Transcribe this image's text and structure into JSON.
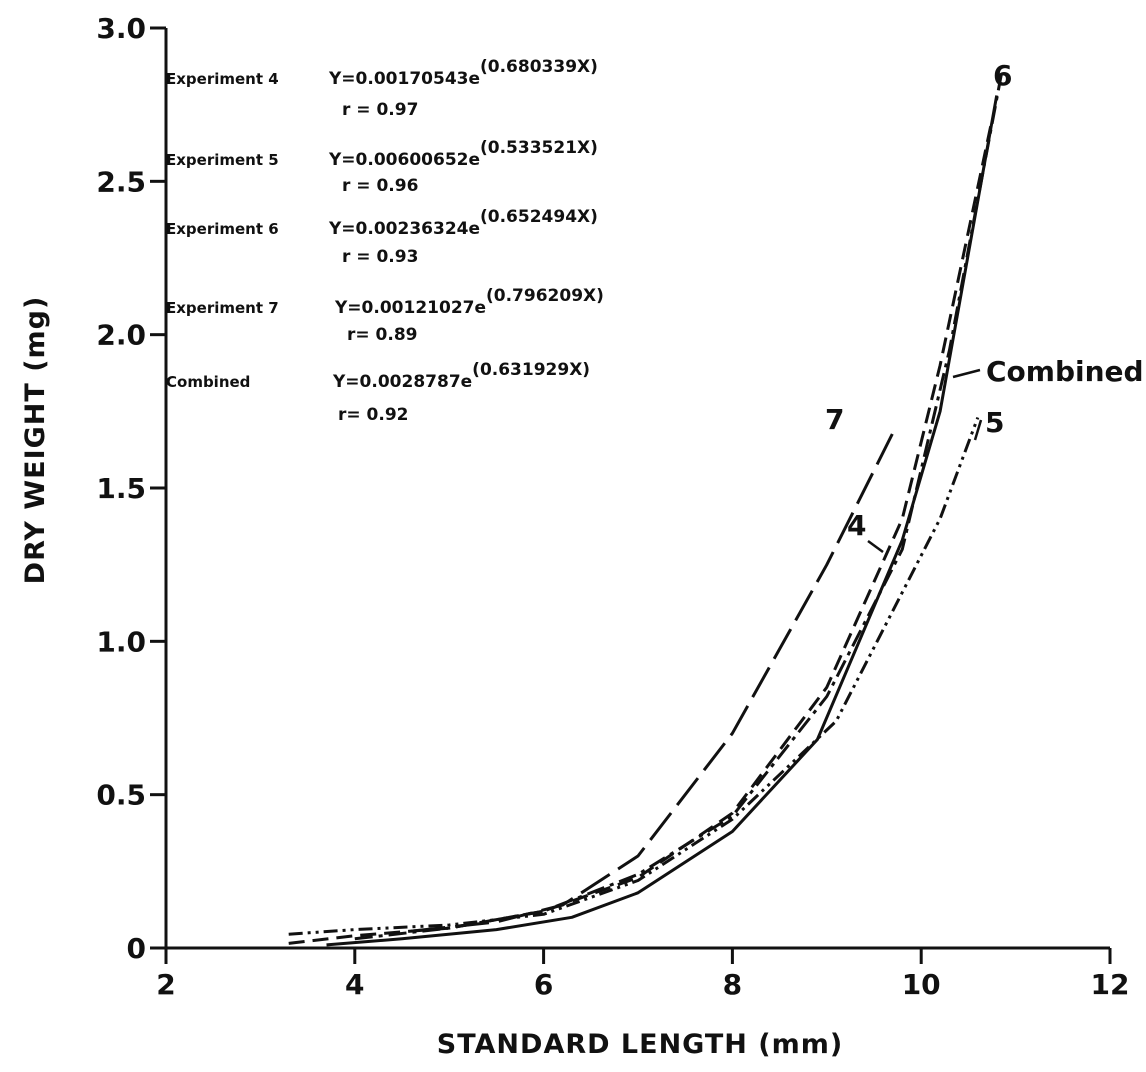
{
  "chart_data": {
    "type": "line",
    "xlabel": "STANDARD LENGTH (mm)",
    "ylabel": "DRY WEIGHT (mg)",
    "xlim": [
      2,
      12
    ],
    "ylim": [
      0,
      3.0
    ],
    "x_ticks": [
      2,
      4,
      6,
      8,
      10,
      12
    ],
    "x_tick_labels": [
      "2",
      "4",
      "6",
      "8",
      "10",
      "12"
    ],
    "y_ticks": [
      0,
      0.5,
      1.0,
      1.5,
      2.0,
      2.5,
      3.0
    ],
    "y_tick_labels": [
      "0",
      "0.5",
      "1.0",
      "1.5",
      "2.0",
      "2.5",
      "3.0"
    ],
    "grid": false,
    "series": [
      {
        "name": "4",
        "style": "dashed",
        "points": [
          [
            3.3,
            0.015
          ],
          [
            4.0,
            0.04
          ],
          [
            5.0,
            0.065
          ],
          [
            6.0,
            0.12
          ],
          [
            7.0,
            0.23
          ],
          [
            8.0,
            0.44
          ],
          [
            9.0,
            0.85
          ],
          [
            9.8,
            1.4
          ],
          [
            10.2,
            1.9
          ],
          [
            10.75,
            2.7
          ]
        ]
      },
      {
        "name": "5",
        "style": "dash-dot-dot",
        "points": [
          [
            3.3,
            0.045
          ],
          [
            4.0,
            0.06
          ],
          [
            5.0,
            0.075
          ],
          [
            6.0,
            0.11
          ],
          [
            7.0,
            0.22
          ],
          [
            8.0,
            0.42
          ],
          [
            9.1,
            0.74
          ],
          [
            10.2,
            1.4
          ],
          [
            10.6,
            1.73
          ]
        ]
      },
      {
        "name": "6",
        "style": "dash-dot",
        "points": [
          [
            4.0,
            0.03
          ],
          [
            5.0,
            0.065
          ],
          [
            6.0,
            0.12
          ],
          [
            7.0,
            0.24
          ],
          [
            8.0,
            0.43
          ],
          [
            9.0,
            0.82
          ],
          [
            9.8,
            1.3
          ],
          [
            10.3,
            1.95
          ],
          [
            10.85,
            2.85
          ]
        ]
      },
      {
        "name": "7",
        "style": "long-dash",
        "points": [
          [
            4.6,
            0.055
          ],
          [
            5.5,
            0.085
          ],
          [
            6.2,
            0.14
          ],
          [
            7.0,
            0.3
          ],
          [
            8.0,
            0.7
          ],
          [
            9.0,
            1.25
          ],
          [
            9.7,
            1.68
          ]
        ]
      },
      {
        "name": "Combined",
        "style": "solid",
        "points": [
          [
            3.7,
            0.01
          ],
          [
            4.5,
            0.03
          ],
          [
            5.5,
            0.06
          ],
          [
            6.3,
            0.1
          ],
          [
            7.0,
            0.18
          ],
          [
            8.0,
            0.38
          ],
          [
            8.9,
            0.68
          ],
          [
            9.8,
            1.33
          ],
          [
            10.2,
            1.75
          ],
          [
            10.8,
            2.78
          ]
        ]
      }
    ],
    "curve_labels": [
      "6",
      "Combined",
      "7",
      "5",
      "4"
    ],
    "equations": [
      {
        "label": "Experiment 4",
        "base": "Y=0.00170543e",
        "exponent": "(0.680339X)",
        "r": "r = 0.97"
      },
      {
        "label": "Experiment 5",
        "base": "Y=0.00600652e",
        "exponent": "(0.533521X)",
        "r": "r = 0.96"
      },
      {
        "label": "Experiment 6",
        "base": "Y=0.00236324e",
        "exponent": "(0.652494X)",
        "r": "r = 0.93"
      },
      {
        "label": "Experiment 7",
        "base": "Y=0.00121027e",
        "exponent": "(0.796209X)",
        "r": "r= 0.89"
      },
      {
        "label": "Combined",
        "base": "Y=0.0028787e",
        "exponent": "(0.631929X)",
        "r": "r= 0.92"
      }
    ]
  }
}
